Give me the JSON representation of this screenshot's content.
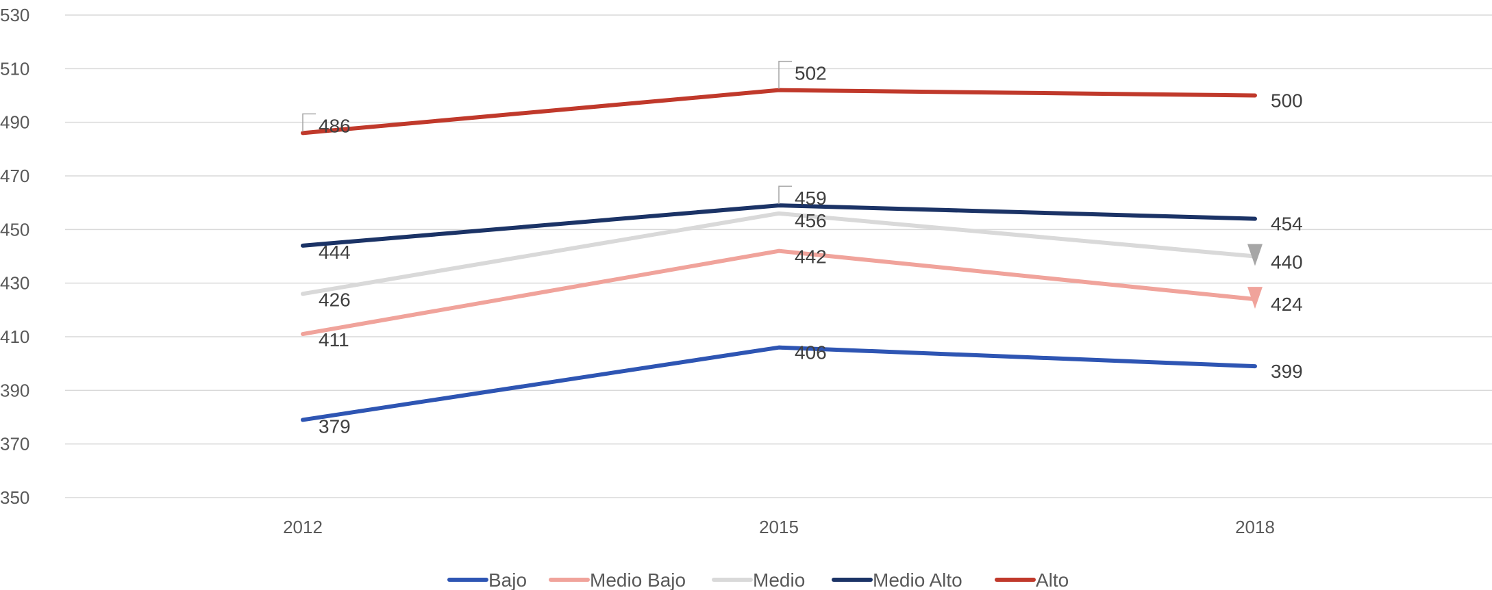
{
  "chart_data": {
    "type": "line",
    "title": "",
    "xlabel": "",
    "ylabel": "",
    "x": [
      "2012",
      "2015",
      "2018"
    ],
    "ylim": [
      350,
      530
    ],
    "yticks": [
      350,
      370,
      390,
      410,
      430,
      450,
      470,
      490,
      510,
      530
    ],
    "grid": true,
    "legend_position": "bottom",
    "series": [
      {
        "name": "Bajo",
        "values": [
          379,
          406,
          399
        ],
        "color": "#2E55B3"
      },
      {
        "name": "Medio Bajo",
        "values": [
          411,
          442,
          424
        ],
        "color": "#F0A39B",
        "end_marker": "down-triangle"
      },
      {
        "name": "Medio",
        "values": [
          426,
          456,
          440
        ],
        "color": "#D9D9D9",
        "end_marker": "down-triangle",
        "end_marker_color": "#A6A6A6"
      },
      {
        "name": "Medio Alto",
        "values": [
          444,
          459,
          454
        ],
        "color": "#1B3366"
      },
      {
        "name": "Alto",
        "values": [
          486,
          502,
          500
        ],
        "color": "#C0392B"
      }
    ],
    "data_labels": {
      "Bajo": [
        "379",
        "406",
        "399"
      ],
      "Medio Bajo": [
        "411",
        "442",
        "424"
      ],
      "Medio": [
        "426",
        "456",
        "440"
      ],
      "Medio Alto": [
        "444",
        "459",
        "454"
      ],
      "Alto": [
        "486",
        "502",
        "500"
      ]
    }
  }
}
